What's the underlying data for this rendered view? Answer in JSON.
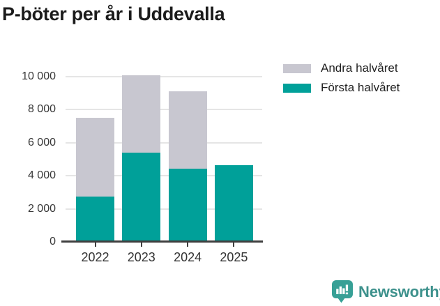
{
  "header": {
    "title": "P-böter per år i Uddevalla"
  },
  "chart_data": {
    "type": "bar",
    "stacked": true,
    "title": "P-böter per år i Uddevalla",
    "categories": [
      "2022",
      "2023",
      "2024",
      "2025"
    ],
    "series": [
      {
        "name": "Första halvåret",
        "color": "#00A099",
        "values": [
          2750,
          5400,
          4450,
          4650
        ]
      },
      {
        "name": "Andra halvåret",
        "color": "#C8C7D0",
        "values": [
          4750,
          4700,
          4650,
          0
        ]
      }
    ],
    "stack_totals": [
      7500,
      10100,
      9100,
      4650
    ],
    "xlabel": "",
    "ylabel": "",
    "ylim": [
      0,
      10400
    ],
    "y_ticks": [
      {
        "value": 0,
        "label": "0"
      },
      {
        "value": 2000,
        "label": "2 000"
      },
      {
        "value": 4000,
        "label": "4 000"
      },
      {
        "value": 6000,
        "label": "6 000"
      },
      {
        "value": 8000,
        "label": "8 000"
      },
      {
        "value": 10000,
        "label": "10 000"
      }
    ],
    "grid": "horizontal",
    "gridline_color": "#E5E5E5",
    "axis_color": "#3F3F3F",
    "legend_position": "top-right"
  },
  "legend": {
    "items": [
      {
        "label": "Andra halvåret",
        "color": "#C8C7D0"
      },
      {
        "label": "Första halvåret",
        "color": "#00A099"
      }
    ]
  },
  "footer": {
    "brand": "Newsworthy",
    "brand_text_color": "#3D918C",
    "badge_color": "#37A096",
    "badge_icon": "bar-chart-exclamation-speech-bubble-icon"
  }
}
